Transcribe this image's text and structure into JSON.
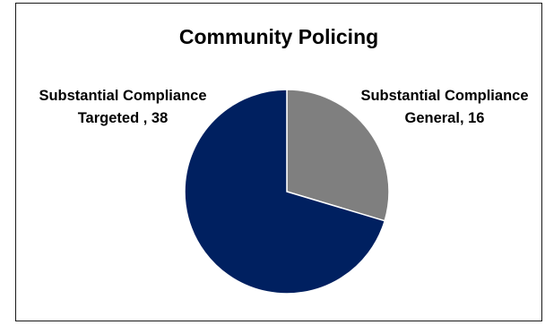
{
  "chart_data": {
    "type": "pie",
    "title": "Community Policing",
    "categories": [
      "Substantial Compliance General",
      "Substantial Compliance Targeted"
    ],
    "values": [
      16,
      38
    ],
    "labels": [
      [
        "Substantial Compliance",
        "General, 16"
      ],
      [
        "Substantial Compliance",
        "Targeted , 38"
      ]
    ],
    "colors": [
      "#7f7f7f",
      "#002060"
    ],
    "start_angle_deg": 0,
    "direction": "clockwise",
    "legend": "none"
  }
}
